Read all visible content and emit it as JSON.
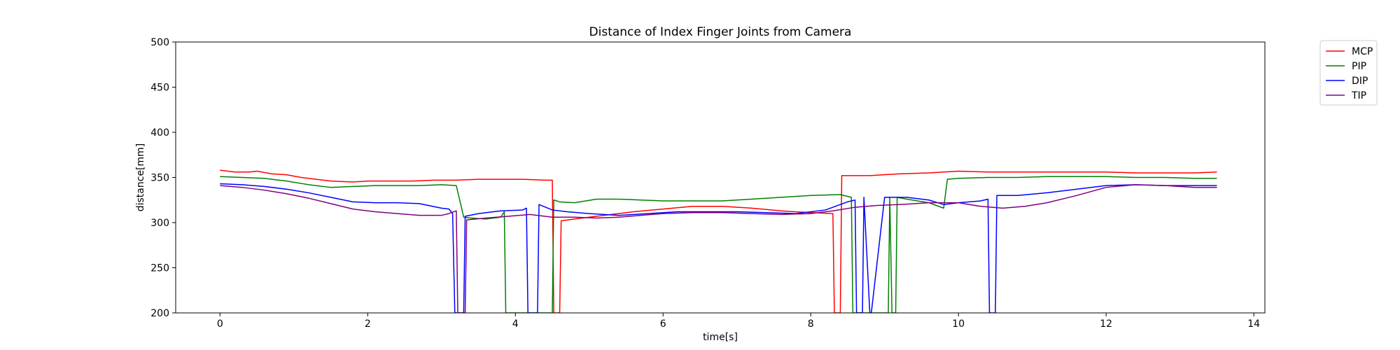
{
  "chart_data": {
    "type": "line",
    "title": "Distance of Index Finger Joints from Camera",
    "xlabel": "time[s]",
    "ylabel": "distance[mm]",
    "xlim": [
      -0.6,
      14.15
    ],
    "ylim": [
      200,
      500
    ],
    "xticks": [
      0,
      2,
      4,
      6,
      8,
      10,
      12,
      14
    ],
    "yticks": [
      200,
      250,
      300,
      350,
      400,
      450,
      500
    ],
    "grid": false,
    "legend": "outside-upper-right",
    "series": [
      {
        "name": "MCP",
        "color": "#ff0000",
        "x": [
          0,
          0.2,
          0.4,
          0.5,
          0.7,
          0.9,
          1.1,
          1.3,
          1.5,
          1.8,
          2.0,
          2.3,
          2.6,
          2.9,
          3.2,
          3.5,
          3.8,
          4.1,
          4.4,
          4.5,
          4.52,
          4.6,
          4.62,
          4.8,
          5.0,
          5.3,
          5.6,
          6.0,
          6.4,
          6.8,
          7.2,
          7.6,
          8.0,
          8.3,
          8.32,
          8.4,
          8.42,
          8.6,
          8.8,
          9.2,
          9.6,
          10.0,
          10.4,
          10.8,
          11.2,
          11.6,
          12.0,
          12.4,
          12.8,
          13.2,
          13.5
        ],
        "y": [
          358,
          356,
          356,
          357,
          354,
          353,
          350,
          348,
          346,
          345,
          346,
          346,
          346,
          347,
          347,
          348,
          348,
          348,
          347,
          347,
          200,
          200,
          302,
          304,
          306,
          309,
          312,
          315,
          318,
          318,
          316,
          313,
          311,
          310,
          200,
          200,
          352,
          352,
          352,
          354,
          355,
          357,
          356,
          356,
          356,
          356,
          356,
          355,
          355,
          355,
          356
        ]
      },
      {
        "name": "PIP",
        "color": "#008000",
        "x": [
          0,
          0.3,
          0.6,
          0.9,
          1.2,
          1.5,
          1.8,
          2.1,
          2.4,
          2.7,
          3.0,
          3.2,
          3.3,
          3.4,
          3.6,
          3.8,
          3.85,
          3.87,
          4.5,
          4.52,
          4.6,
          4.8,
          5.1,
          5.4,
          5.7,
          6.0,
          6.4,
          6.8,
          7.2,
          7.6,
          8.0,
          8.4,
          8.55,
          8.57,
          9.05,
          9.07,
          9.1,
          9.12,
          9.15,
          9.17,
          9.3,
          9.6,
          9.8,
          9.85,
          10.0,
          10.4,
          10.8,
          11.2,
          11.6,
          12.0,
          12.4,
          12.8,
          13.2,
          13.5
        ],
        "y": [
          351,
          350,
          349,
          346,
          342,
          339,
          340,
          341,
          341,
          341,
          342,
          341,
          306,
          305,
          304,
          306,
          312,
          200,
          200,
          325,
          323,
          322,
          326,
          326,
          325,
          324,
          324,
          324,
          326,
          328,
          330,
          331,
          328,
          200,
          200,
          328,
          200,
          200,
          200,
          328,
          326,
          322,
          316,
          348,
          349,
          350,
          350,
          351,
          351,
          351,
          350,
          350,
          349,
          349
        ]
      },
      {
        "name": "DIP",
        "color": "#0000ff",
        "x": [
          0,
          0.3,
          0.6,
          0.9,
          1.2,
          1.5,
          1.8,
          2.1,
          2.4,
          2.7,
          3.0,
          3.1,
          3.15,
          3.18,
          3.3,
          3.32,
          3.5,
          3.8,
          4.1,
          4.15,
          4.17,
          4.3,
          4.32,
          4.5,
          4.7,
          5.0,
          5.4,
          5.8,
          6.2,
          6.6,
          7.0,
          7.4,
          7.8,
          8.2,
          8.5,
          8.6,
          8.62,
          8.7,
          8.72,
          8.8,
          8.82,
          9.0,
          9.3,
          9.6,
          9.8,
          10.0,
          10.3,
          10.4,
          10.42,
          10.5,
          10.52,
          10.8,
          11.2,
          11.6,
          12.0,
          12.4,
          12.8,
          13.2,
          13.5
        ],
        "y": [
          343,
          342,
          340,
          337,
          333,
          328,
          323,
          322,
          322,
          321,
          316,
          315,
          310,
          200,
          200,
          307,
          310,
          313,
          314,
          316,
          200,
          200,
          320,
          314,
          312,
          310,
          308,
          310,
          312,
          312,
          312,
          311,
          310,
          314,
          323,
          325,
          200,
          200,
          328,
          200,
          200,
          328,
          328,
          325,
          320,
          322,
          324,
          326,
          200,
          200,
          330,
          330,
          333,
          337,
          341,
          342,
          341,
          341,
          341
        ]
      },
      {
        "name": "TIP",
        "color": "#800080",
        "x": [
          0,
          0.3,
          0.6,
          0.9,
          1.2,
          1.5,
          1.8,
          2.1,
          2.4,
          2.7,
          3.0,
          3.1,
          3.2,
          3.22,
          3.32,
          3.34,
          3.6,
          3.9,
          4.2,
          4.5,
          4.8,
          5.1,
          5.4,
          5.7,
          6.0,
          6.4,
          6.8,
          7.2,
          7.6,
          8.0,
          8.3,
          8.6,
          8.9,
          9.2,
          9.6,
          10.0,
          10.3,
          10.6,
          10.9,
          11.2,
          11.6,
          12.0,
          12.4,
          12.8,
          13.2,
          13.5
        ],
        "y": [
          341,
          339,
          336,
          332,
          327,
          321,
          315,
          312,
          310,
          308,
          308,
          310,
          313,
          200,
          200,
          303,
          305,
          307,
          309,
          306,
          306,
          305,
          306,
          308,
          310,
          311,
          311,
          310,
          309,
          310,
          313,
          317,
          319,
          320,
          322,
          322,
          318,
          316,
          318,
          322,
          330,
          339,
          342,
          341,
          339,
          339
        ]
      }
    ]
  }
}
